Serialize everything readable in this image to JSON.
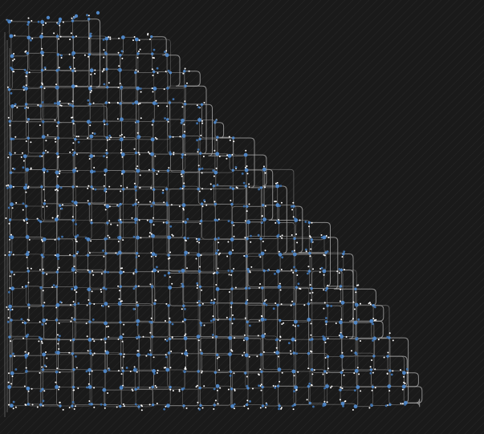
{
  "canvas": {
    "background": "#1a1a1a",
    "texture_color": "#262626",
    "edge_color": "#8a8a8a",
    "node_color": "#4f86c6",
    "node_highlight": "#ffffff"
  },
  "graph": {
    "kind": "dense-node-link-grid",
    "grid_columns": 26,
    "grid_rows": 24,
    "shape": "staircase-triangle",
    "row_column_counts": [
      6,
      10,
      11,
      12,
      12,
      13,
      14,
      15,
      16,
      17,
      18,
      19,
      20,
      21,
      22,
      22,
      23,
      24,
      24,
      25,
      25,
      26,
      26,
      26
    ],
    "edge_style": "orthogonal-rounded",
    "labels_visible": false
  }
}
